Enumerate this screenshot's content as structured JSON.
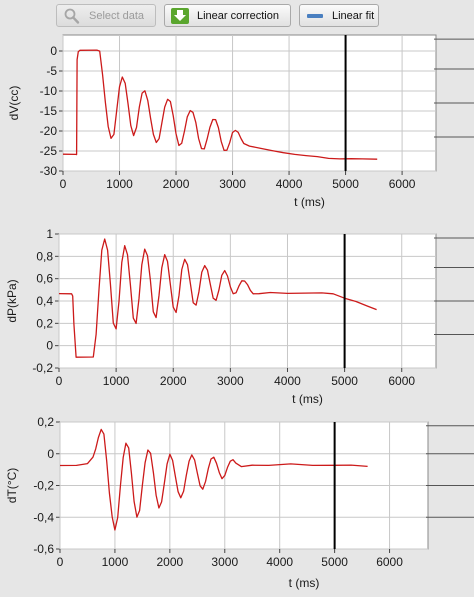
{
  "toolbar": {
    "select_data_label": "Select data",
    "linear_correction_label": "Linear correction",
    "linear_fit_label": "Linear fit"
  },
  "colors": {
    "trace": "#cc1a1a",
    "cursor": "#000000",
    "grid": "#c8c8c8",
    "plot_bg": "#ffffff"
  },
  "chart_data": [
    {
      "type": "line",
      "xlabel": "t (ms)",
      "ylabel": "dV(cc)",
      "xlim": [
        0,
        6600
      ],
      "ylim": [
        -30,
        4
      ],
      "xticks": [
        0,
        1000,
        2000,
        3000,
        4000,
        5000,
        6000
      ],
      "yticks": [
        0,
        -5,
        -10,
        -15,
        -20,
        -25,
        -30
      ],
      "ytick_labels": [
        "0",
        "-5",
        "-10",
        "-15",
        "-20",
        "-25",
        "-30"
      ],
      "cursor_x": 5000,
      "series": [
        {
          "x": [
            0,
            230,
            240,
            250,
            270,
            300,
            600,
            650,
            700,
            750,
            800,
            850,
            900,
            950,
            1000,
            1050,
            1100,
            1150,
            1200,
            1250,
            1300,
            1350,
            1400,
            1450,
            1500,
            1550,
            1600,
            1650,
            1700,
            1750,
            1800,
            1850,
            1900,
            1950,
            2000,
            2050,
            2100,
            2150,
            2200,
            2250,
            2300,
            2350,
            2400,
            2450,
            2500,
            2550,
            2600,
            2650,
            2700,
            2750,
            2800,
            2850,
            2900,
            2950,
            3000,
            3050,
            3100,
            3150,
            3200,
            3300,
            3500,
            3700,
            3900,
            4100,
            4300,
            4500,
            4700,
            4900,
            5100,
            5300,
            5560
          ],
          "y": [
            -25.8,
            -25.8,
            -25.8,
            -2,
            0,
            0.3,
            0.3,
            0,
            -6,
            -13,
            -19,
            -22,
            -21,
            -15,
            -9,
            -6.5,
            -8,
            -13,
            -18.5,
            -21,
            -19,
            -14,
            -10.5,
            -10,
            -12.5,
            -17,
            -21,
            -23,
            -22,
            -18,
            -14,
            -12,
            -12.5,
            -16,
            -20.5,
            -23.5,
            -23,
            -20,
            -16.5,
            -15,
            -15.5,
            -18,
            -22,
            -24.5,
            -24.5,
            -22,
            -19,
            -17,
            -17,
            -19,
            -22.5,
            -24.8,
            -24.8,
            -23,
            -20.5,
            -20,
            -20.5,
            -22,
            -23.2,
            -23.8,
            -24.3,
            -24.8,
            -25.3,
            -25.7,
            -26,
            -26.3,
            -26.8,
            -27,
            -27,
            -27.1,
            -27.2
          ]
        }
      ]
    },
    {
      "type": "line",
      "xlabel": "t (ms)",
      "ylabel": "dP(kPa)",
      "xlim": [
        0,
        6600
      ],
      "ylim": [
        -0.2,
        1
      ],
      "xticks": [
        0,
        1000,
        2000,
        3000,
        4000,
        5000,
        6000
      ],
      "yticks": [
        1,
        0.8,
        0.6,
        0.4,
        0.2,
        0,
        -0.2
      ],
      "ytick_labels": [
        "1",
        "0,8",
        "0,6",
        "0,4",
        "0,2",
        "0",
        "-0,2"
      ],
      "cursor_x": 5000,
      "series": [
        {
          "x": [
            0,
            220,
            240,
            260,
            300,
            600,
            650,
            700,
            750,
            800,
            850,
            900,
            950,
            1000,
            1050,
            1100,
            1150,
            1200,
            1250,
            1300,
            1350,
            1400,
            1450,
            1500,
            1550,
            1600,
            1650,
            1700,
            1750,
            1800,
            1850,
            1900,
            1950,
            2000,
            2050,
            2100,
            2150,
            2200,
            2250,
            2300,
            2350,
            2400,
            2450,
            2500,
            2550,
            2600,
            2650,
            2700,
            2750,
            2800,
            2850,
            2900,
            2950,
            3000,
            3050,
            3100,
            3150,
            3200,
            3250,
            3300,
            3350,
            3400,
            3500,
            3700,
            4000,
            4300,
            4600,
            4800,
            5000,
            5200,
            5400,
            5560
          ],
          "y": [
            0.47,
            0.47,
            0.45,
            0.2,
            -0.1,
            -0.1,
            0.1,
            0.5,
            0.85,
            0.95,
            0.85,
            0.55,
            0.2,
            0.15,
            0.4,
            0.75,
            0.9,
            0.82,
            0.55,
            0.25,
            0.2,
            0.42,
            0.72,
            0.86,
            0.8,
            0.58,
            0.3,
            0.25,
            0.45,
            0.7,
            0.82,
            0.76,
            0.55,
            0.35,
            0.3,
            0.45,
            0.68,
            0.77,
            0.72,
            0.55,
            0.38,
            0.36,
            0.48,
            0.66,
            0.72,
            0.68,
            0.55,
            0.43,
            0.41,
            0.5,
            0.63,
            0.67,
            0.62,
            0.52,
            0.46,
            0.47,
            0.53,
            0.58,
            0.58,
            0.55,
            0.5,
            0.47,
            0.47,
            0.48,
            0.47,
            0.47,
            0.47,
            0.46,
            0.42,
            0.39,
            0.35,
            0.32
          ]
        }
      ]
    },
    {
      "type": "line",
      "xlabel": "t (ms)",
      "ylabel": "dT(°C)",
      "xlim": [
        0,
        6700
      ],
      "ylim": [
        -0.6,
        0.2
      ],
      "xticks": [
        0,
        1000,
        2000,
        3000,
        4000,
        5000,
        6000
      ],
      "yticks": [
        0.2,
        0,
        -0.2,
        -0.4,
        -0.6
      ],
      "ytick_labels": [
        "0,2",
        "0",
        "-0,2",
        "-0,4",
        "-0,6"
      ],
      "cursor_x": 5000,
      "series": [
        {
          "x": [
            0,
            300,
            500,
            600,
            650,
            700,
            750,
            800,
            850,
            900,
            950,
            1000,
            1050,
            1100,
            1150,
            1200,
            1250,
            1300,
            1350,
            1400,
            1450,
            1500,
            1550,
            1600,
            1650,
            1700,
            1750,
            1800,
            1850,
            1900,
            1950,
            2000,
            2050,
            2100,
            2150,
            2200,
            2250,
            2300,
            2350,
            2400,
            2450,
            2500,
            2550,
            2600,
            2650,
            2700,
            2750,
            2800,
            2850,
            2900,
            2950,
            3000,
            3050,
            3100,
            3150,
            3200,
            3300,
            3500,
            3800,
            4200,
            4600,
            5000,
            5300,
            5600
          ],
          "y": [
            -0.07,
            -0.07,
            -0.06,
            -0.02,
            0.03,
            0.1,
            0.15,
            0.12,
            -0.05,
            -0.25,
            -0.4,
            -0.48,
            -0.4,
            -0.2,
            -0.02,
            0.07,
            0.04,
            -0.12,
            -0.3,
            -0.4,
            -0.36,
            -0.2,
            -0.06,
            0.02,
            0.0,
            -0.12,
            -0.26,
            -0.34,
            -0.3,
            -0.18,
            -0.06,
            0.0,
            -0.04,
            -0.14,
            -0.24,
            -0.28,
            -0.24,
            -0.14,
            -0.05,
            -0.01,
            -0.04,
            -0.12,
            -0.2,
            -0.22,
            -0.17,
            -0.09,
            -0.03,
            -0.02,
            -0.06,
            -0.12,
            -0.16,
            -0.14,
            -0.09,
            -0.05,
            -0.04,
            -0.06,
            -0.08,
            -0.07,
            -0.07,
            -0.06,
            -0.07,
            -0.07,
            -0.07,
            -0.08
          ]
        }
      ]
    }
  ]
}
